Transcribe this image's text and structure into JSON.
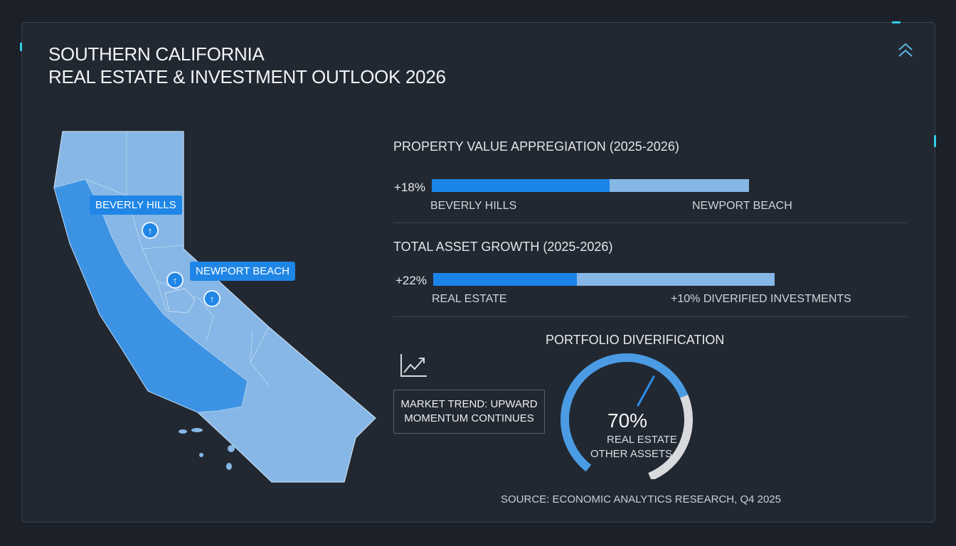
{
  "header": {
    "title_line1": "SOUTHERN CALIFORNIA",
    "title_line2": "REAL ESTATE & INVESTMENT OUTLOOK 2026",
    "collapse_icon": "double-chevron-up-icon"
  },
  "map": {
    "labels": [
      "BEVERLY HILLS",
      "NEWPORT BEACH"
    ],
    "pin_glyph": "↑"
  },
  "colors": {
    "accent": "#2fd0e6",
    "bar_fill": "#1a84e8",
    "bar_track": "#86b7e6",
    "map_light": "#86b7e6",
    "map_dark": "#3d93e3",
    "gauge_primary": "#4a9be3",
    "gauge_secondary": "#d8dadd"
  },
  "chart_data": [
    {
      "type": "bar",
      "title": "PROPERTY VALUE APPREGIATION (2025-2026)",
      "value_label": "+18%",
      "left_label": "BEVERLY HILLS",
      "right_label": "NEWPORT BEACH",
      "fill_fraction": 0.56
    },
    {
      "type": "bar",
      "title": "TOTAL ASSET GROWTH (2025-2026)",
      "value_label": "+22%",
      "left_label": "REAL ESTATE",
      "right_label": "+10% DIVERIFIED INVESTMENTS",
      "fill_fraction": 0.42
    },
    {
      "type": "pie",
      "title": "PORTFOLIO DIVERIFICATION",
      "center_value": "70%",
      "labels": [
        "REAL ESTATE",
        "OTHER ASSETS"
      ],
      "values": [
        70,
        30
      ]
    }
  ],
  "trend": {
    "line1": "MARKET TREND: UPWARD",
    "line2": "MOMENTUM CONTINUES",
    "icon": "trending-up-icon"
  },
  "source": "SOURCE: ECONOMIC ANALYTICS RESEARCH, Q4 2025"
}
